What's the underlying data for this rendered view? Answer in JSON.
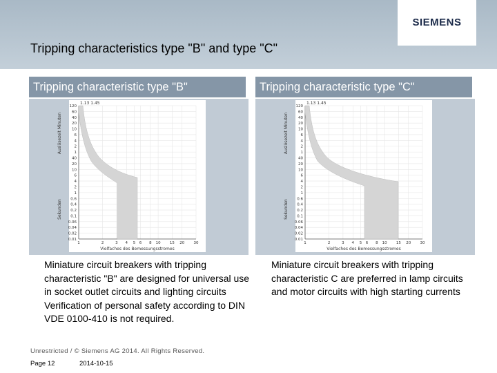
{
  "brand": {
    "logo_text": "SIEMENS"
  },
  "slide": {
    "title": "Tripping characteristics type \"B\" and type \"C\""
  },
  "panels": {
    "left": {
      "header": "Tripping characteristic type \"B\"",
      "description": "Miniature circuit breakers with tripping characteristic \"B\" are designed for universal use in socket outlet circuits and lighting circuits Verification of personal safety according  to DIN VDE 0100-410 is not required."
    },
    "right": {
      "header": "Tripping characteristic type \"C\"",
      "description": "Miniature circuit breakers with tripping characteristic C are preferred in lamp circuits and motor circuits with high starting currents"
    }
  },
  "footer": {
    "copyright": "Unrestricted / © Siemens AG 2014. All Rights Reserved.",
    "page": "Page 12",
    "date": "2014-10-15"
  },
  "chart_data": [
    {
      "type": "area",
      "title": "Tripping characteristic type \"B\"",
      "top_label": "1.13  1.45",
      "xlabel": "Vielfaches des Bemessungsstromes",
      "ylabel_minutes": "Auslösezeit Minuten",
      "ylabel_seconds": "Sekunden",
      "x_ticks": [
        "1",
        "2",
        "3",
        "4",
        "5",
        "6",
        "8",
        "10",
        "15",
        "20",
        "30"
      ],
      "y_ticks_minutes": [
        "120",
        "60",
        "40",
        "20",
        "10",
        "6",
        "4",
        "2",
        "1"
      ],
      "y_ticks_seconds": [
        "40",
        "20",
        "10",
        "6",
        "4",
        "2",
        "1",
        "0.6",
        "0.4",
        "0.2",
        "0.1",
        "0.06",
        "0.04",
        "0.02",
        "0.01"
      ],
      "band_color": "#d5d5d5",
      "grid_color": "#e6e6e6"
    },
    {
      "type": "area",
      "title": "Tripping characteristic type \"C\"",
      "top_label": "1.13  1.45",
      "xlabel": "Vielfaches des Bemessungsstromes",
      "ylabel_minutes": "Auslösezeit Minuten",
      "ylabel_seconds": "Sekunden",
      "x_ticks": [
        "1",
        "2",
        "3",
        "4",
        "5",
        "6",
        "8",
        "10",
        "15",
        "20",
        "30"
      ],
      "y_ticks_minutes": [
        "120",
        "60",
        "40",
        "20",
        "10",
        "6",
        "4",
        "2",
        "1"
      ],
      "y_ticks_seconds": [
        "40",
        "20",
        "10",
        "6",
        "4",
        "2",
        "1",
        "0.6",
        "0.4",
        "0.2",
        "0.1",
        "0.06",
        "0.04",
        "0.02",
        "0.01"
      ],
      "band_color": "#d5d5d5",
      "grid_color": "#e6e6e6"
    }
  ]
}
